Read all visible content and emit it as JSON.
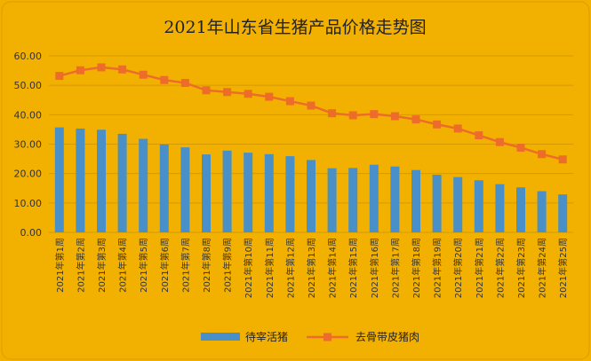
{
  "chart_data": {
    "type": "bar",
    "title": "2021年山东省生猪产品价格走势图",
    "categories": [
      "2021年第1周",
      "2021年第2周",
      "2021年第3周",
      "2021年第4周",
      "2021年第5周",
      "2021年第6周",
      "2021年第7周",
      "2021年第8周",
      "2021年第9周",
      "2021年第10周",
      "2021年第11周",
      "2021年第12周",
      "2021年第13周",
      "2021年第14周",
      "2021年第15周",
      "2021年第16周",
      "2021年第17周",
      "2021年第18周",
      "2021年第19周",
      "2021年第20周",
      "2021年第21周",
      "2021年第22周",
      "2021年第23周",
      "2021年第24周",
      "2021年第25周"
    ],
    "yticks": [
      "0.00",
      "10.00",
      "20.00",
      "30.00",
      "40.00",
      "50.00",
      "60.00"
    ],
    "ylim": [
      0,
      60
    ],
    "grid": true,
    "legend_position": "bottom",
    "series": [
      {
        "name": "待宰活猪",
        "type": "bar",
        "color": "#4a90c8",
        "values": [
          35.7,
          35.3,
          34.9,
          33.5,
          31.8,
          29.9,
          28.9,
          26.5,
          27.8,
          27.1,
          26.6,
          25.9,
          24.6,
          21.8,
          21.9,
          23.0,
          22.4,
          21.2,
          19.6,
          18.8,
          17.7,
          16.4,
          15.3,
          14.0,
          12.9
        ]
      },
      {
        "name": "去骨带皮猪肉",
        "type": "line",
        "color": "#ee6c2a",
        "values": [
          53.2,
          55.1,
          56.1,
          55.4,
          53.6,
          51.8,
          50.8,
          48.3,
          47.7,
          47.1,
          46.1,
          44.6,
          43.1,
          40.5,
          39.8,
          40.2,
          39.5,
          38.4,
          36.7,
          35.3,
          33.0,
          30.7,
          28.8,
          26.6,
          24.8
        ]
      }
    ]
  }
}
